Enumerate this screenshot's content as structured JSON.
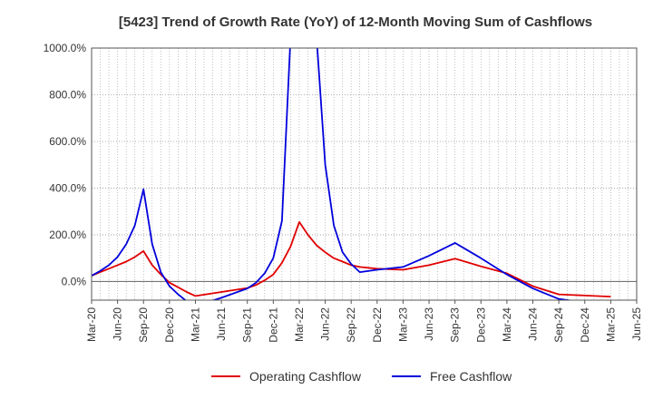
{
  "chart_data": {
    "type": "line",
    "title": "[5423]  Trend of Growth Rate (YoY) of 12-Month Moving Sum of Cashflows",
    "xlabel": "",
    "ylabel": "",
    "ylim": [
      -80,
      1000
    ],
    "yticks": [
      0,
      200,
      400,
      600,
      800,
      1000
    ],
    "ytick_labels": [
      "0.0%",
      "200.0%",
      "400.0%",
      "600.0%",
      "800.0%",
      "1000.0%"
    ],
    "x_ticks": [
      "Mar-20",
      "Jun-20",
      "Sep-20",
      "Dec-20",
      "Mar-21",
      "Jun-21",
      "Sep-21",
      "Dec-21",
      "Mar-22",
      "Jun-22",
      "Sep-22",
      "Dec-22",
      "Mar-23",
      "Jun-23",
      "Sep-23",
      "Dec-23",
      "Mar-24",
      "Jun-24",
      "Sep-24",
      "Dec-24",
      "Mar-25",
      "Jun-25"
    ],
    "x_range": [
      "Mar-20",
      "Jun-25"
    ],
    "grid": true,
    "legend_position": "bottom",
    "colors": {
      "operating": "#e00000",
      "free": "#0000dd"
    },
    "series": [
      {
        "name": "Operating Cashflow",
        "color": "#e00000",
        "x": [
          "Mar-20",
          "Apr-20",
          "May-20",
          "Jun-20",
          "Jul-20",
          "Aug-20",
          "Sep-20",
          "Oct-20",
          "Nov-20",
          "Dec-20",
          "Jan-21",
          "Feb-21",
          "Mar-21",
          "Jun-21",
          "Sep-21",
          "Oct-21",
          "Nov-21",
          "Dec-21",
          "Jan-22",
          "Feb-22",
          "Mar-22",
          "Apr-22",
          "May-22",
          "Jun-22",
          "Jul-22",
          "Aug-22",
          "Sep-22",
          "Oct-22",
          "Dec-22",
          "Mar-23",
          "Jun-23",
          "Sep-23",
          "Dec-23",
          "Mar-24",
          "Jun-24",
          "Sep-24",
          "Dec-24",
          "Mar-25"
        ],
        "values": [
          25,
          40,
          55,
          70,
          85,
          105,
          130,
          70,
          30,
          -5,
          -25,
          -45,
          -62,
          -45,
          -28,
          -15,
          5,
          30,
          80,
          150,
          255,
          200,
          155,
          125,
          100,
          85,
          70,
          62,
          55,
          50,
          70,
          98,
          65,
          35,
          -20,
          -55,
          -60,
          -65
        ]
      },
      {
        "name": "Free Cashflow",
        "color": "#0000dd",
        "x": [
          "Mar-20",
          "Apr-20",
          "May-20",
          "Jun-20",
          "Jul-20",
          "Aug-20",
          "Sep-20",
          "Oct-20",
          "Nov-20",
          "Dec-20",
          "Jan-21",
          "Feb-21",
          "Mar-21",
          "Jun-21",
          "Sep-21",
          "Oct-21",
          "Nov-21",
          "Dec-21",
          "Jan-22",
          "Feb-22",
          "Mar-22",
          "Apr-22",
          "May-22",
          "Jun-22",
          "Jul-22",
          "Aug-22",
          "Sep-22",
          "Oct-22",
          "Dec-22",
          "Mar-23",
          "Jun-23",
          "Sep-23",
          "Dec-23",
          "Mar-24",
          "Jun-24",
          "Sep-24",
          "Dec-24",
          "Mar-25"
        ],
        "values": [
          25,
          45,
          70,
          105,
          160,
          240,
          395,
          160,
          40,
          -20,
          -55,
          -85,
          -105,
          -70,
          -30,
          -5,
          35,
          100,
          260,
          1050,
          1350,
          1400,
          1050,
          500,
          240,
          125,
          75,
          40,
          50,
          62,
          110,
          165,
          100,
          30,
          -30,
          -75,
          -90,
          -105
        ]
      }
    ]
  }
}
